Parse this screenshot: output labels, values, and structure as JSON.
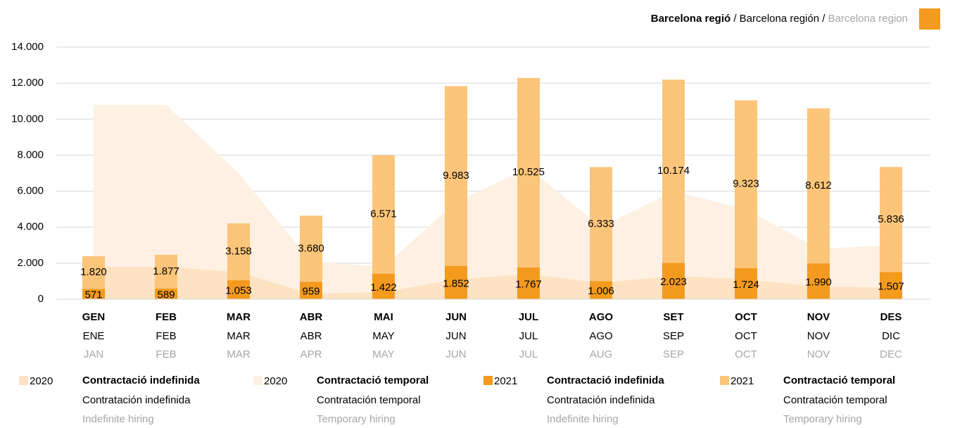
{
  "chart_data": {
    "type": "bar",
    "title": [
      "Barcelona regió",
      " / Barcelona región / ",
      "Barcelona region"
    ],
    "title_color": "#f39a1f",
    "categories": [
      "GEN",
      "FEB",
      "MAR",
      "ABR",
      "MAI",
      "JUN",
      "JUL",
      "AGO",
      "SET",
      "OCT",
      "NOV",
      "DES"
    ],
    "categories_es": [
      "ENE",
      "FEB",
      "MAR",
      "ABR",
      "MAY",
      "JUN",
      "JUL",
      "AGO",
      "SEP",
      "OCT",
      "NOV",
      "DIC"
    ],
    "categories_en": [
      "JAN",
      "FEB",
      "MAR",
      "APR",
      "MAY",
      "JUN",
      "JUL",
      "AUG",
      "SEP",
      "OCT",
      "NOV",
      "DEC"
    ],
    "ylim": [
      0,
      14000
    ],
    "yticks": [
      0,
      {
        "value": 2000,
        "label": "2.000"
      },
      {
        "value": 4000,
        "label": "4.000"
      },
      {
        "value": 6000,
        "label": "6.000"
      },
      {
        "value": 8000,
        "label": "8.000"
      },
      {
        "value": 10000,
        "label": "10.000"
      },
      {
        "value": 12000,
        "label": "12.000"
      },
      {
        "value": 14000,
        "label": "14.000"
      }
    ],
    "grid": true,
    "series": [
      {
        "name": "2020",
        "kind": "area",
        "color": "#fde3c4",
        "labels": [
          "Contractació indefinida",
          "Contratación indefinida",
          "Indefinite hiring"
        ],
        "values": [
          1800,
          1800,
          1500,
          300,
          400,
          1100,
          1400,
          900,
          1300,
          1100,
          700,
          650
        ]
      },
      {
        "name": "2020",
        "kind": "area",
        "color": "#fef1e3",
        "labels": [
          "Contractació temporal",
          "Contratación temporal",
          "Temporary hiring"
        ],
        "values": [
          10800,
          10800,
          7000,
          2100,
          1800,
          5400,
          7300,
          4000,
          6000,
          5000,
          2800,
          3000
        ]
      },
      {
        "name": "2021",
        "kind": "bar",
        "color": "#f39a1f",
        "labels": [
          "Contractació indefinida",
          "Contratación indefinida",
          "Indefinite hiring"
        ],
        "values": [
          571,
          589,
          1053,
          959,
          1422,
          1852,
          1767,
          1006,
          2023,
          1724,
          1990,
          1507
        ],
        "value_labels": [
          "571",
          "589",
          "1.053",
          "959",
          "1.422",
          "1.852",
          "1.767",
          "1.006",
          "2.023",
          "1.724",
          "1.990",
          "1.507"
        ]
      },
      {
        "name": "2021",
        "kind": "bar",
        "color": "#fcc57a",
        "labels": [
          "Contractació temporal",
          "Contratación temporal",
          "Temporary hiring"
        ],
        "values": [
          1820,
          1877,
          3158,
          3680,
          6571,
          9983,
          10525,
          6333,
          10174,
          9323,
          8612,
          5836
        ],
        "value_labels": [
          "1.820",
          "1.877",
          "3.158",
          "3.680",
          "6.571",
          "9.983",
          "10.525",
          "6.333",
          "10.174",
          "9.323",
          "8.612",
          "5.836"
        ]
      }
    ]
  }
}
